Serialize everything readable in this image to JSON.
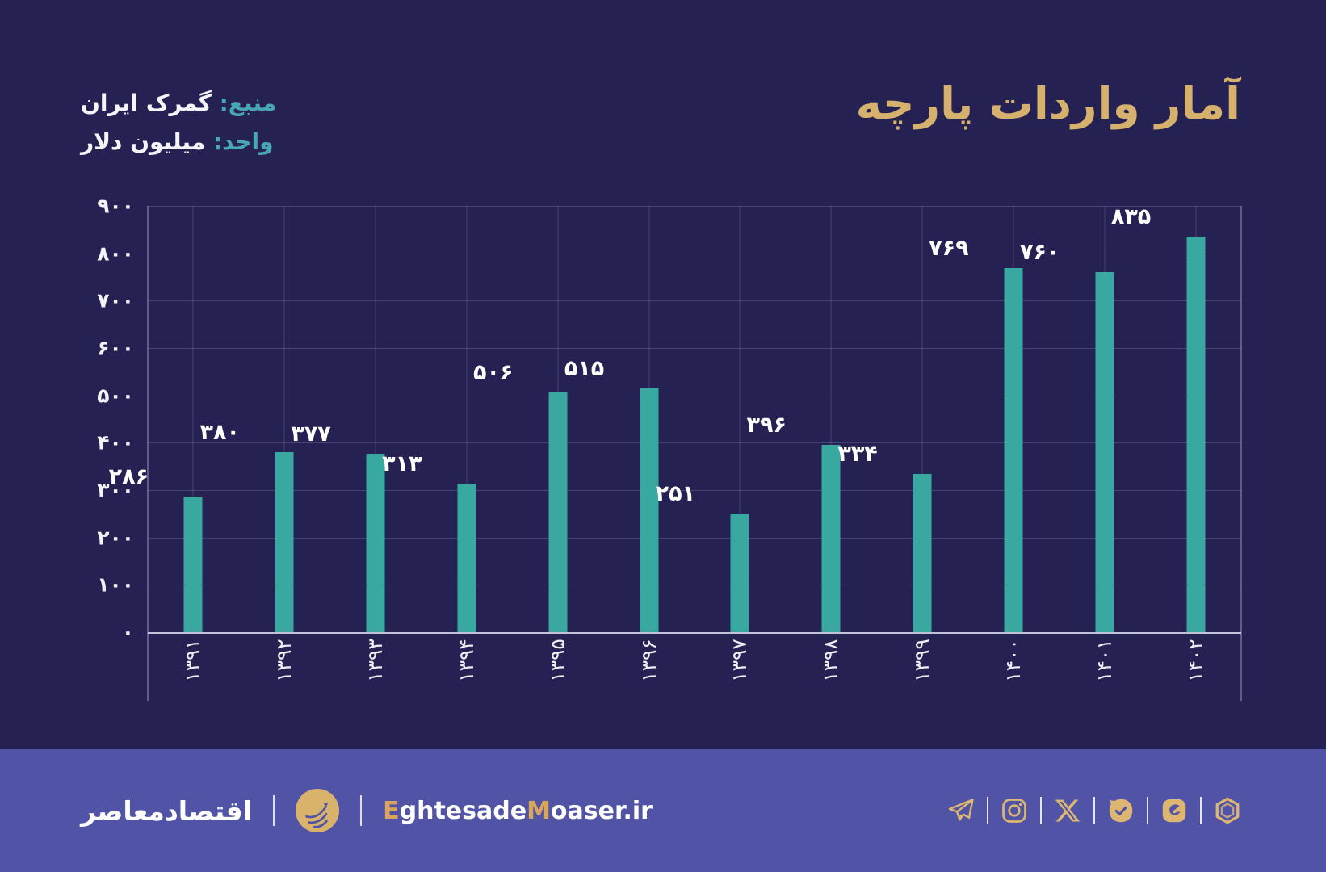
{
  "header": {
    "title": "آمار واردات پارچه",
    "source_label": "منبع:",
    "source_value": "گمرک ایران",
    "unit_label": "واحد:",
    "unit_value": "میلیون دلار"
  },
  "chart_data": {
    "type": "bar",
    "title": "آمار واردات پارچه",
    "source": "گمرک ایران",
    "unit": "میلیون دلار",
    "categories": [
      "1391",
      "1392",
      "1393",
      "1394",
      "1395",
      "1396",
      "1397",
      "1398",
      "1399",
      "1400",
      "1401",
      "1402"
    ],
    "categories_fa": [
      "۱۳۹۱",
      "۱۳۹۲",
      "۱۳۹۳",
      "۱۳۹۴",
      "۱۳۹۵",
      "۱۳۹۶",
      "۱۳۹۷",
      "۱۳۹۸",
      "۱۳۹۹",
      "۱۴۰۰",
      "۱۴۰۱",
      "۱۴۰۲"
    ],
    "values": [
      286,
      380,
      377,
      313,
      506,
      515,
      251,
      396,
      334,
      769,
      760,
      835
    ],
    "value_labels_fa": [
      "۲۸۶",
      "۳۸۰",
      "۳۷۷",
      "۳۱۳",
      "۵۰۶",
      "۵۱۵",
      "۲۵۱",
      "۳۹۶",
      "۳۳۴",
      "۷۶۹",
      "۷۶۰",
      "۸۳۵"
    ],
    "ylim": [
      0,
      900
    ],
    "ytick_step": 100,
    "yticks_fa": [
      "۰",
      "۱۰۰",
      "۲۰۰",
      "۳۰۰",
      "۴۰۰",
      "۵۰۰",
      "۶۰۰",
      "۷۰۰",
      "۸۰۰",
      "۹۰۰"
    ],
    "grid": true,
    "legend": "none",
    "bar_color": "#39A8A0",
    "xlabel": "",
    "ylabel": ""
  },
  "footer": {
    "brand_fa": "اقتصادمعاصر",
    "site_parts": [
      {
        "text": "E",
        "gold": true
      },
      {
        "text": "ghtesade",
        "gold": false
      },
      {
        "text": "M",
        "gold": true
      },
      {
        "text": "oaser",
        "gold": false
      },
      {
        "text": ".ir",
        "gold": false
      }
    ],
    "icons": [
      "telegram-icon",
      "instagram-icon",
      "x-icon",
      "bale-icon",
      "eitaa-icon",
      "rubika-icon"
    ]
  },
  "colors": {
    "background": "#252253",
    "bar": "#39A8A0",
    "title_gold": "#D5B16D",
    "label_teal": "#49A6B4",
    "footer_purple": "#5154A6",
    "icon_gold": "#DDB671",
    "text_white": "#FFFFFF"
  }
}
